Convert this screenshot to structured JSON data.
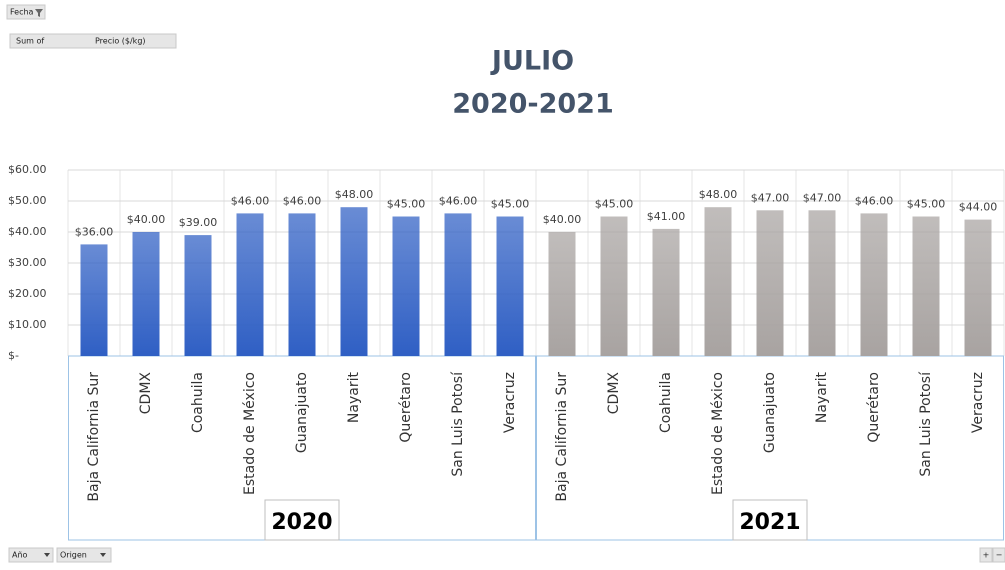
{
  "chart_data": {
    "type": "bar",
    "title": "JULIO",
    "subtitle": "2020-2021",
    "categories": [
      "Baja California Sur",
      "CDMX",
      "Coahuila",
      "Estado de México",
      "Guanajuato",
      "Nayarit",
      "Querétaro",
      "San Luis Potosí",
      "Veracruz"
    ],
    "series": [
      {
        "name": "2020",
        "color": "#2f5fc4",
        "values": [
          36,
          40,
          39,
          46,
          46,
          48,
          45,
          46,
          45
        ],
        "value_labels": [
          "$36.00",
          "$40.00",
          "$39.00",
          "$46.00",
          "$46.00",
          "$48.00",
          "$45.00",
          "$46.00",
          "$45.00"
        ]
      },
      {
        "name": "2021",
        "color": "#a8a3a1",
        "values": [
          40,
          45,
          41,
          48,
          47,
          47,
          46,
          45,
          44
        ],
        "value_labels": [
          "$40.00",
          "$45.00",
          "$41.00",
          "$48.00",
          "$47.00",
          "$47.00",
          "$46.00",
          "$45.00",
          "$44.00"
        ]
      }
    ],
    "ylim": [
      0,
      60
    ],
    "yticks": [
      {
        "value": 0,
        "label": "$-"
      },
      {
        "value": 10,
        "label": "$10.00"
      },
      {
        "value": 20,
        "label": "$20.00"
      },
      {
        "value": 30,
        "label": "$30.00"
      },
      {
        "value": 40,
        "label": "$40.00"
      },
      {
        "value": 50,
        "label": "$50.00"
      },
      {
        "value": 60,
        "label": "$60.00"
      }
    ],
    "grid": true
  },
  "pivot": {
    "filter_field": "Fecha",
    "value_field": [
      "Sum of",
      "Precio ($/kg)"
    ],
    "row_fields": [
      "Año",
      "Origen"
    ],
    "zoom_buttons": [
      "+",
      "−"
    ]
  }
}
